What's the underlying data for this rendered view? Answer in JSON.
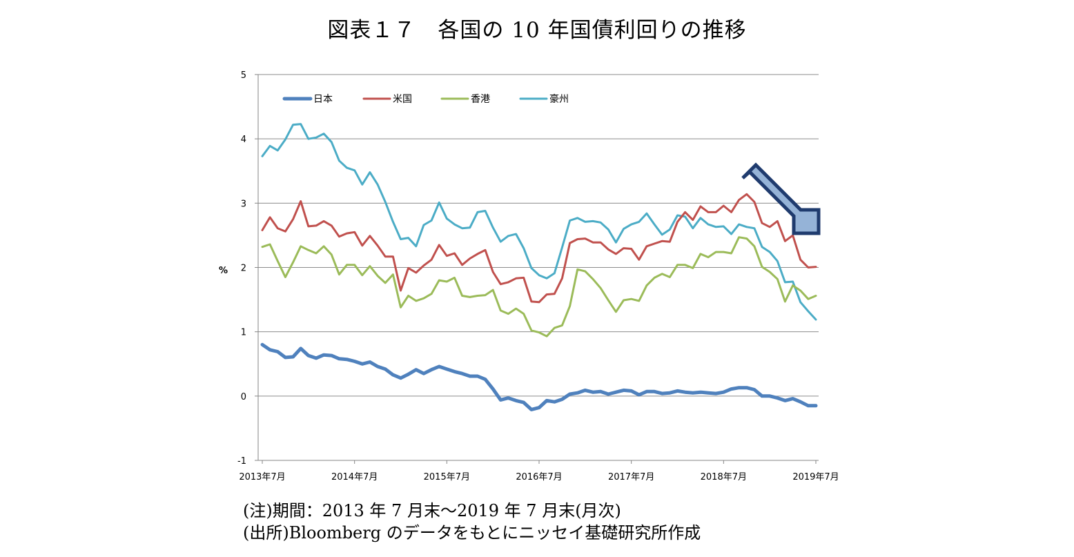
{
  "title": "図表１７　各国の 10 年国債利回りの推移",
  "notes": {
    "period": "(注)期間：2013 年 7 月末〜2019 年 7 月末(月次)",
    "source": "(出所)Bloomberg のデータをもとにニッセイ基礎研究所作成"
  },
  "chart_data": {
    "type": "line",
    "ylabel": "%",
    "ylim": [
      -1,
      5
    ],
    "yticks": [
      -1,
      0,
      1,
      2,
      3,
      4,
      5
    ],
    "grid": true,
    "legend_position": "top-left",
    "x_tick_labels": [
      "2013年7月",
      "2014年7月",
      "2015年7月",
      "2016年7月",
      "2017年7月",
      "2018年7月",
      "2019年7月"
    ],
    "x_tick_indices": [
      0,
      12,
      24,
      36,
      48,
      60,
      72
    ],
    "series": [
      {
        "name": "日本",
        "color": "#4f81bd",
        "values": [
          0.8,
          0.72,
          0.69,
          0.6,
          0.61,
          0.74,
          0.63,
          0.59,
          0.64,
          0.63,
          0.58,
          0.57,
          0.54,
          0.5,
          0.53,
          0.46,
          0.42,
          0.33,
          0.28,
          0.34,
          0.41,
          0.35,
          0.41,
          0.46,
          0.42,
          0.38,
          0.35,
          0.31,
          0.31,
          0.26,
          0.11,
          -0.06,
          -0.03,
          -0.07,
          -0.1,
          -0.21,
          -0.18,
          -0.07,
          -0.09,
          -0.05,
          0.03,
          0.05,
          0.09,
          0.06,
          0.07,
          0.03,
          0.06,
          0.09,
          0.08,
          0.02,
          0.07,
          0.07,
          0.04,
          0.05,
          0.08,
          0.06,
          0.05,
          0.06,
          0.05,
          0.04,
          0.06,
          0.11,
          0.13,
          0.13,
          0.1,
          0.0,
          0.0,
          -0.03,
          -0.07,
          -0.04,
          -0.09,
          -0.15,
          -0.15
        ]
      },
      {
        "name": "米国",
        "color": "#c0504d",
        "values": [
          2.58,
          2.78,
          2.61,
          2.56,
          2.75,
          3.03,
          2.64,
          2.65,
          2.72,
          2.65,
          2.48,
          2.53,
          2.55,
          2.34,
          2.49,
          2.34,
          2.17,
          2.17,
          1.64,
          1.99,
          1.92,
          2.03,
          2.12,
          2.35,
          2.18,
          2.22,
          2.04,
          2.14,
          2.21,
          2.27,
          1.93,
          1.74,
          1.77,
          1.83,
          1.84,
          1.47,
          1.46,
          1.58,
          1.59,
          1.83,
          2.38,
          2.44,
          2.45,
          2.39,
          2.39,
          2.28,
          2.21,
          2.3,
          2.29,
          2.12,
          2.33,
          2.37,
          2.41,
          2.4,
          2.71,
          2.86,
          2.74,
          2.95,
          2.86,
          2.86,
          2.96,
          2.86,
          3.05,
          3.14,
          3.02,
          2.69,
          2.63,
          2.72,
          2.41,
          2.5,
          2.12,
          2.0,
          2.01
        ]
      },
      {
        "name": "香港",
        "color": "#9bbb59",
        "values": [
          2.32,
          2.36,
          2.1,
          1.85,
          2.08,
          2.33,
          2.27,
          2.22,
          2.33,
          2.2,
          1.89,
          2.04,
          2.04,
          1.88,
          2.02,
          1.87,
          1.76,
          1.89,
          1.38,
          1.56,
          1.48,
          1.52,
          1.59,
          1.8,
          1.78,
          1.84,
          1.56,
          1.54,
          1.56,
          1.57,
          1.65,
          1.33,
          1.28,
          1.36,
          1.28,
          1.02,
          0.99,
          0.93,
          1.06,
          1.1,
          1.4,
          1.97,
          1.94,
          1.82,
          1.68,
          1.49,
          1.31,
          1.49,
          1.51,
          1.48,
          1.72,
          1.84,
          1.9,
          1.85,
          2.04,
          2.04,
          1.99,
          2.21,
          2.16,
          2.24,
          2.24,
          2.22,
          2.47,
          2.45,
          2.33,
          2.01,
          1.93,
          1.82,
          1.47,
          1.72,
          1.64,
          1.51,
          1.56
        ]
      },
      {
        "name": "豪州",
        "color": "#4bacc6",
        "values": [
          3.73,
          3.89,
          3.82,
          3.99,
          4.22,
          4.23,
          4.0,
          4.02,
          4.08,
          3.95,
          3.66,
          3.55,
          3.51,
          3.29,
          3.48,
          3.29,
          3.02,
          2.71,
          2.44,
          2.46,
          2.33,
          2.66,
          2.73,
          3.01,
          2.76,
          2.67,
          2.61,
          2.62,
          2.86,
          2.88,
          2.62,
          2.4,
          2.49,
          2.52,
          2.3,
          1.99,
          1.88,
          1.83,
          1.91,
          2.31,
          2.73,
          2.77,
          2.71,
          2.72,
          2.7,
          2.59,
          2.39,
          2.6,
          2.67,
          2.71,
          2.84,
          2.67,
          2.51,
          2.59,
          2.81,
          2.79,
          2.61,
          2.77,
          2.67,
          2.63,
          2.64,
          2.52,
          2.67,
          2.63,
          2.61,
          2.32,
          2.24,
          2.1,
          1.77,
          1.78,
          1.46,
          1.32,
          1.19
        ]
      }
    ]
  }
}
